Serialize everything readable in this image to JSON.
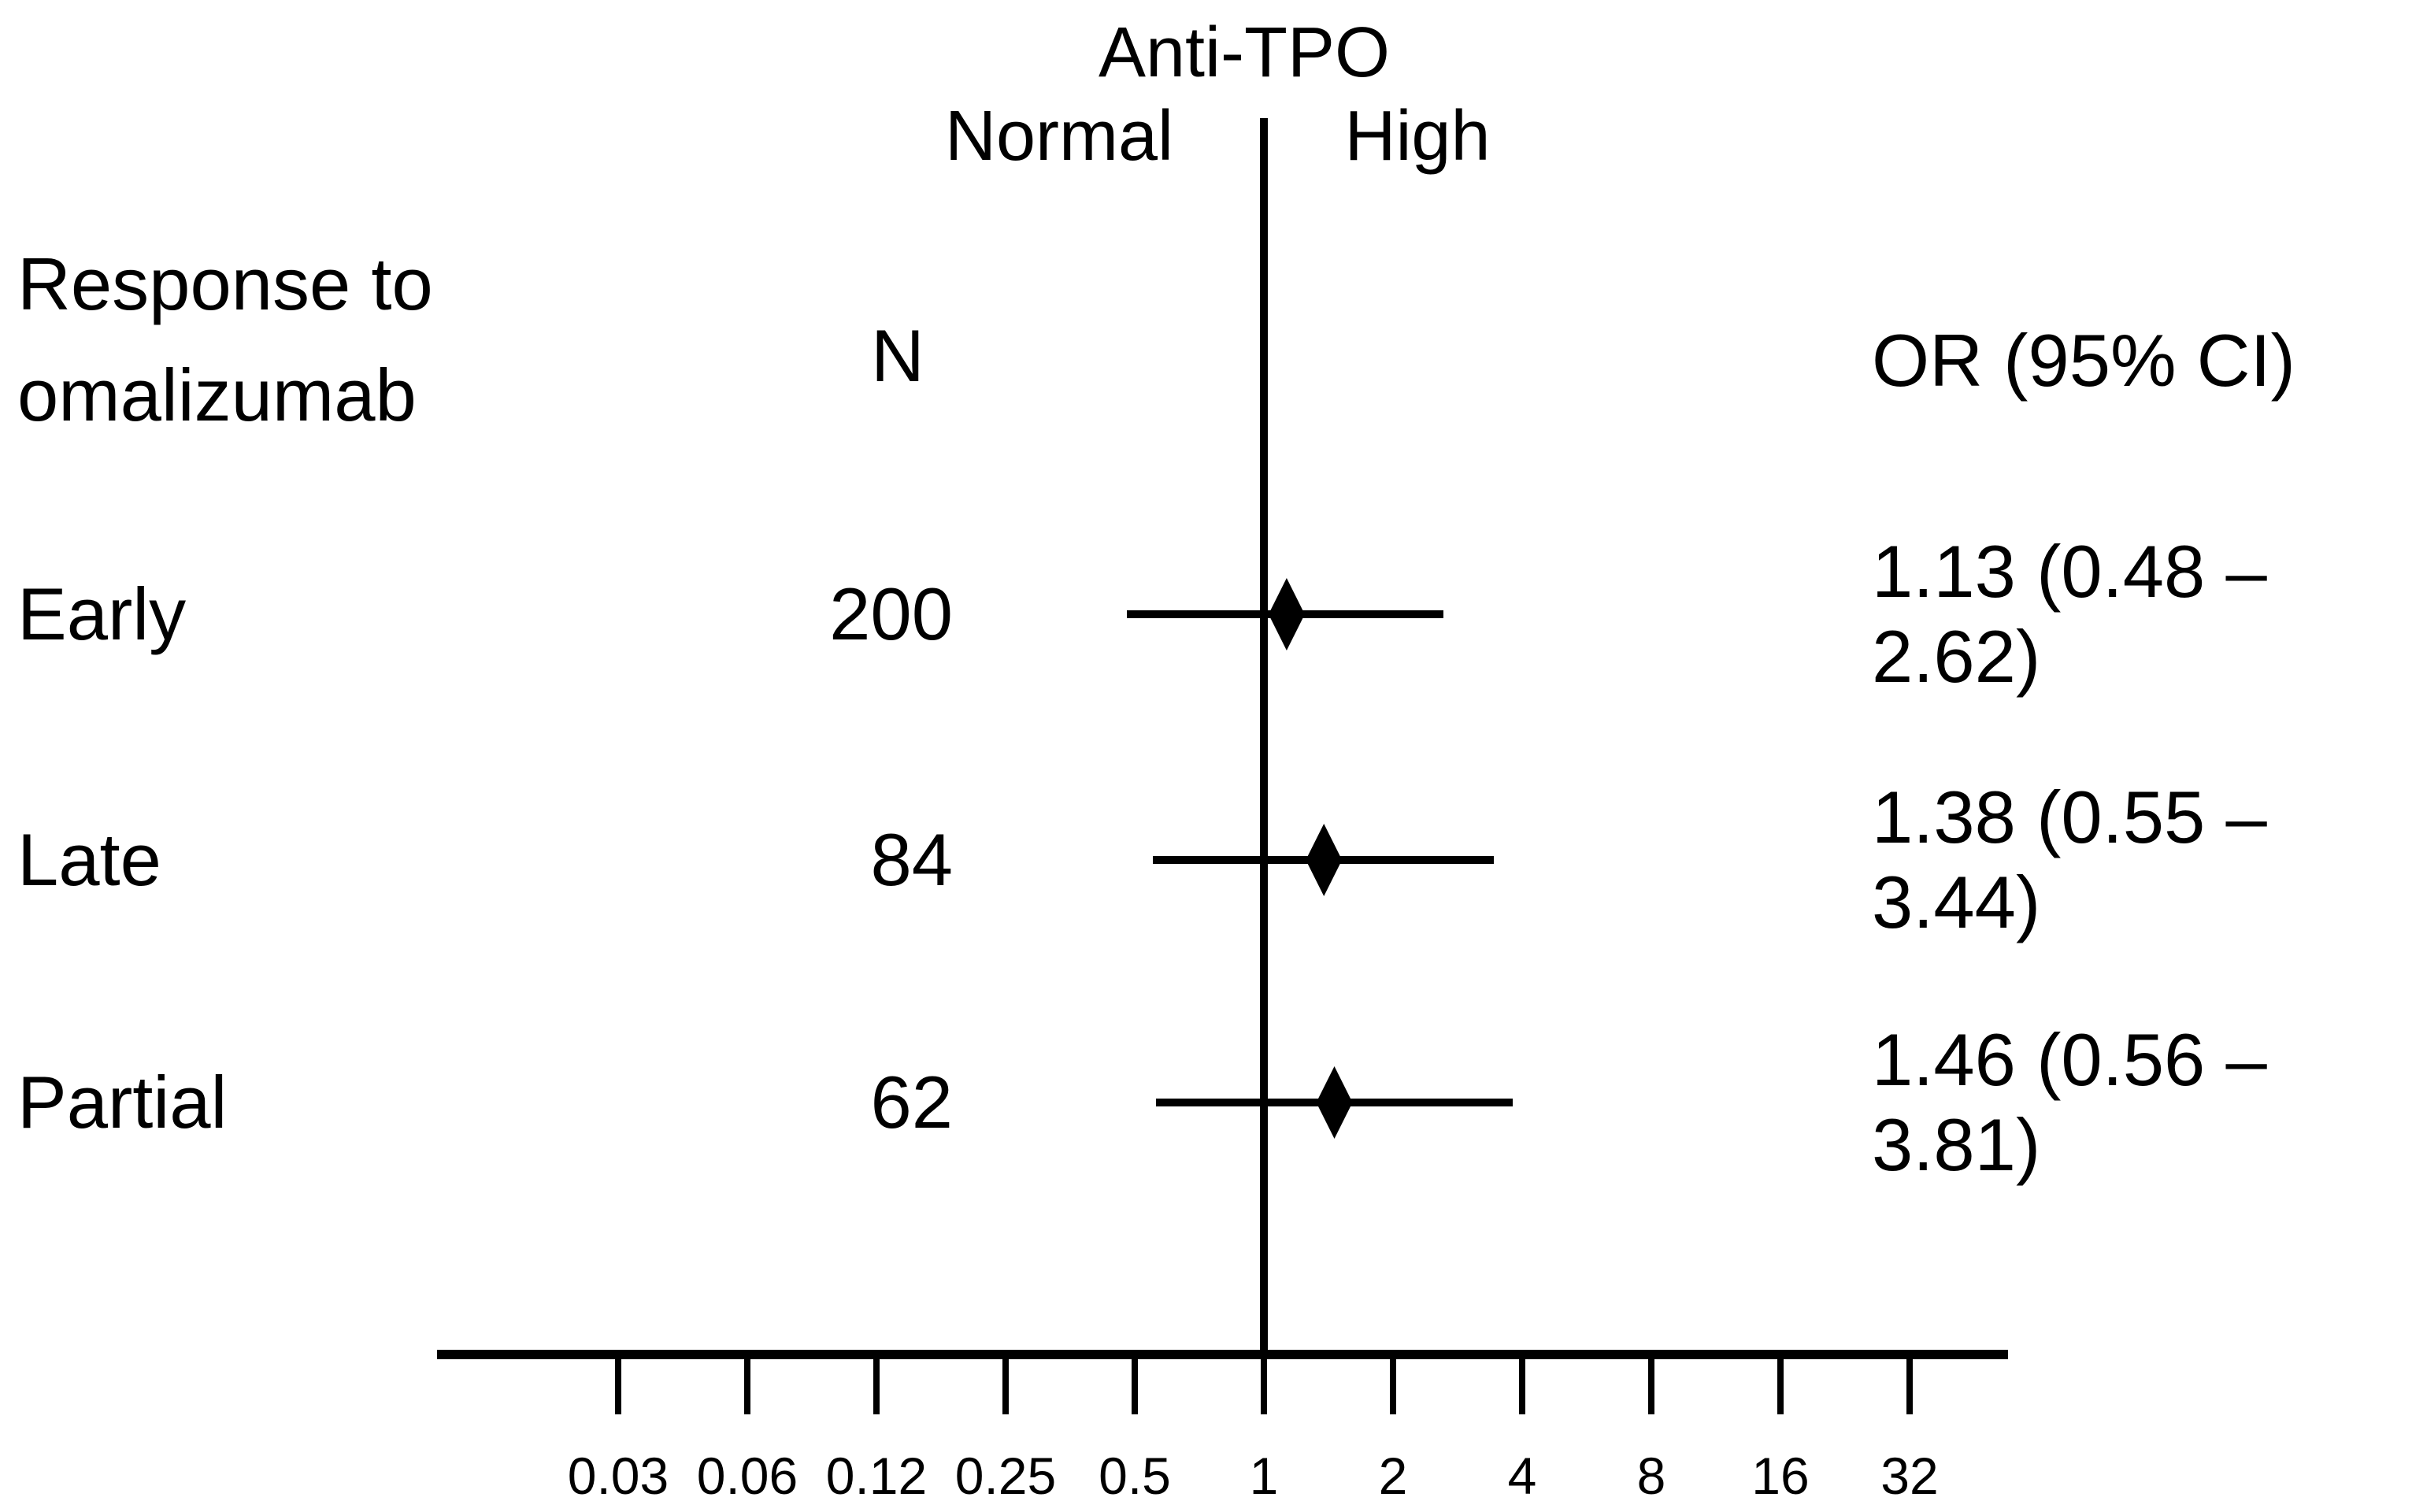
{
  "chart_data": {
    "type": "scatter",
    "subtype": "forest-plot",
    "title": "Anti-TPO",
    "left_region_label": "Normal",
    "right_region_label": "High",
    "row_header": "Response to omalizumab",
    "n_header": "N",
    "or_header": "OR (95% CI)",
    "rows": [
      {
        "label": "Early",
        "n": "200",
        "or": 1.13,
        "ci_low": 0.48,
        "ci_high": 2.62,
        "or_ci_text": "1.13 (0.48 – 2.62)"
      },
      {
        "label": "Late",
        "n": "84",
        "or": 1.38,
        "ci_low": 0.55,
        "ci_high": 3.44,
        "or_ci_text": "1.38 (0.55 – 3.44)"
      },
      {
        "label": "Partial",
        "n": "62",
        "or": 1.46,
        "ci_low": 0.56,
        "ci_high": 3.81,
        "or_ci_text": "1.46 (0.56 – 3.81)"
      }
    ],
    "x_axis": {
      "scale": "log2",
      "tick_labels": [
        "0.03",
        "0.06",
        "0.12",
        "0.25",
        "0.5",
        "1",
        "2",
        "4",
        "8",
        "16",
        "32"
      ],
      "tick_values": [
        0.03125,
        0.0625,
        0.125,
        0.25,
        0.5,
        1,
        2,
        4,
        8,
        16,
        32
      ],
      "reference_line_value": 1,
      "grid": false,
      "legend": false
    },
    "colors": {
      "foreground": "#000000",
      "background": "#ffffff"
    }
  }
}
